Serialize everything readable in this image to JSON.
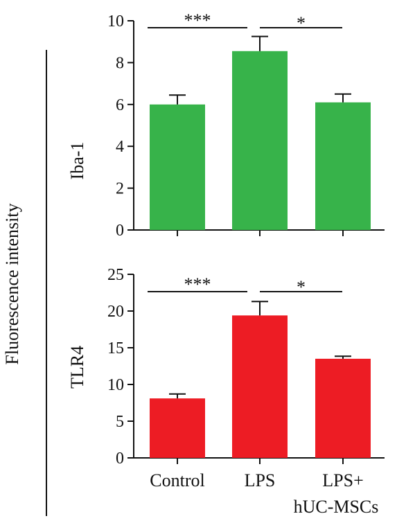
{
  "figure": {
    "shared_ylabel": "Fluorescence intensity"
  },
  "chart_data": [
    {
      "type": "bar",
      "ylabel": "Iba-1",
      "ylim": [
        0,
        10
      ],
      "yticks": [
        0,
        2,
        4,
        6,
        8,
        10
      ],
      "categories": [
        "Control",
        "LPS",
        "LPS+ hUC-MSCs"
      ],
      "values": [
        6.0,
        8.55,
        6.1
      ],
      "errors": [
        0.45,
        0.7,
        0.4
      ],
      "color": "#37b34a",
      "significance": [
        {
          "from": 0,
          "to": 1,
          "label": "***"
        },
        {
          "from": 1,
          "to": 2,
          "label": "*"
        }
      ],
      "show_category_labels": false
    },
    {
      "type": "bar",
      "ylabel": "TLR4",
      "ylim": [
        0,
        25
      ],
      "yticks": [
        0,
        5,
        10,
        15,
        20,
        25
      ],
      "categories": [
        "Control",
        "LPS",
        "LPS+ hUC-MSCs"
      ],
      "category_lines": [
        [
          "Control"
        ],
        [
          "LPS"
        ],
        [
          "LPS+",
          "hUC-MSCs"
        ]
      ],
      "values": [
        8.1,
        19.4,
        13.5
      ],
      "errors": [
        0.6,
        1.9,
        0.35
      ],
      "color": "#ed1c24",
      "significance": [
        {
          "from": 0,
          "to": 1,
          "label": "***"
        },
        {
          "from": 1,
          "to": 2,
          "label": "*"
        }
      ],
      "show_category_labels": true
    }
  ]
}
